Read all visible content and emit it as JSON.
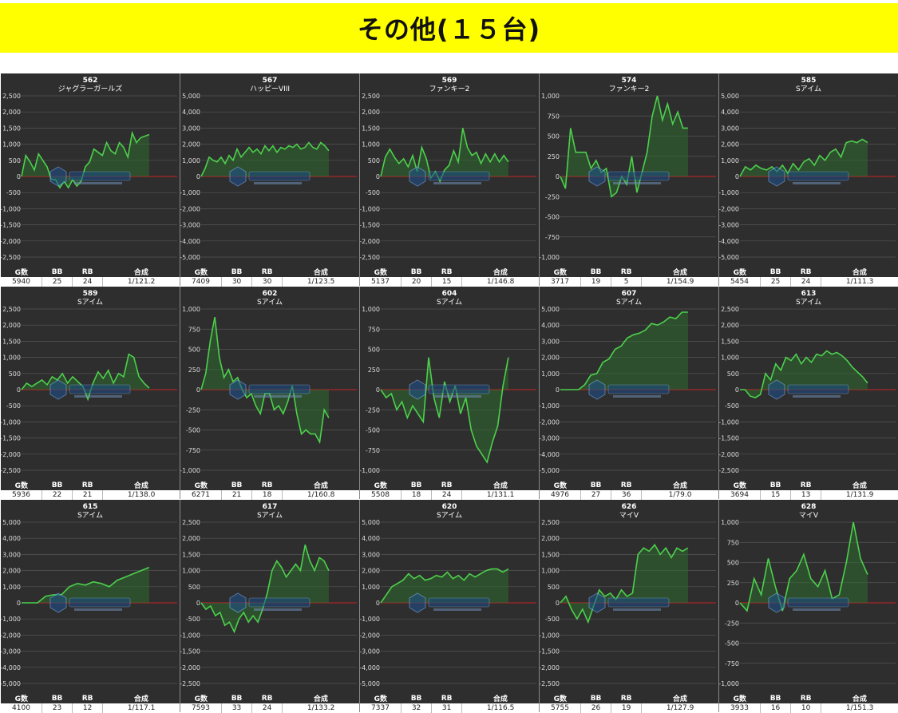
{
  "header": {
    "title": "その他(１５台)"
  },
  "stats_headers": [
    "G数",
    "BB",
    "RB",
    "合成"
  ],
  "colors": {
    "line": "#4cd04c",
    "fill": "#2f6b2f",
    "zero": "#cc2222",
    "grid": "#555555",
    "bg": "#2e2e2e"
  },
  "watermark_icon": "anaslo-logo-icon",
  "chart_data": [
    {
      "type": "line",
      "title": "562",
      "name": "ジャグラーガールズ",
      "ylim": [
        -2500,
        2500
      ],
      "yticks": [
        2500,
        2000,
        1500,
        1000,
        500,
        0,
        -500,
        -1000,
        -1500,
        -2000,
        -2500
      ],
      "ytick_labels": [
        "2,500",
        "2,000",
        "1,500",
        "1,000",
        "500",
        "0",
        "-500",
        "-1,000",
        "-1,500",
        "-2,000",
        "-2,500"
      ],
      "values": [
        0,
        650,
        450,
        200,
        700,
        500,
        300,
        -100,
        -100,
        -350,
        -150,
        -350,
        -100,
        -300,
        -150,
        300,
        450,
        850,
        750,
        650,
        1050,
        800,
        700,
        1050,
        900,
        600,
        1350,
        1050,
        1200,
        1250,
        1300
      ],
      "stats": {
        "g": "5940",
        "bb": "25",
        "rb": "24",
        "total": "1/121.2"
      }
    },
    {
      "type": "line",
      "title": "567",
      "name": "ハッピーVIII",
      "ylim": [
        -5000,
        5000
      ],
      "yticks": [
        5000,
        4000,
        3000,
        2000,
        1000,
        0,
        -1000,
        -2000,
        -3000,
        -4000,
        -5000
      ],
      "ytick_labels": [
        "5,000",
        "4,000",
        "3,000",
        "2,000",
        "1,000",
        "0",
        "-1,000",
        "-2,000",
        "-3,000",
        "-4,000",
        "-5,000"
      ],
      "values": [
        0,
        500,
        1200,
        1000,
        900,
        1200,
        800,
        1300,
        1000,
        1700,
        1200,
        1500,
        1800,
        1500,
        1700,
        1400,
        1900,
        1600,
        1900,
        1500,
        1800,
        1700,
        1900,
        1800,
        2000,
        1700,
        1800,
        2100,
        1800,
        1700,
        2100,
        1900,
        1600
      ],
      "stats": {
        "g": "7409",
        "bb": "30",
        "rb": "30",
        "total": "1/123.5"
      }
    },
    {
      "type": "line",
      "title": "569",
      "name": "ファンキー2",
      "ylim": [
        -2500,
        2500
      ],
      "yticks": [
        2500,
        2000,
        1500,
        1000,
        500,
        0,
        -500,
        -1000,
        -1500,
        -2000,
        -2500
      ],
      "ytick_labels": [
        "2,500",
        "2,000",
        "1,500",
        "1,000",
        "500",
        "0",
        "-500",
        "-1,000",
        "-1,500",
        "-2,000",
        "-2,500"
      ],
      "values": [
        0,
        600,
        850,
        600,
        400,
        550,
        300,
        650,
        150,
        900,
        550,
        -50,
        150,
        -150,
        200,
        350,
        800,
        450,
        1500,
        900,
        650,
        750,
        400,
        700,
        450,
        700,
        450,
        650,
        450
      ],
      "stats": {
        "g": "5137",
        "bb": "20",
        "rb": "15",
        "total": "1/146.8"
      }
    },
    {
      "type": "line",
      "title": "574",
      "name": "ファンキー2",
      "ylim": [
        -1000,
        1000
      ],
      "yticks": [
        1000,
        750,
        500,
        250,
        0,
        -250,
        -500,
        -750,
        -1000
      ],
      "ytick_labels": [
        "1,000",
        "750",
        "500",
        "250",
        "0",
        "-250",
        "-500",
        "-750",
        "-1,000"
      ],
      "values": [
        0,
        -150,
        600,
        300,
        300,
        300,
        100,
        200,
        50,
        100,
        -250,
        -200,
        0,
        -100,
        250,
        -200,
        50,
        300,
        750,
        1000,
        700,
        900,
        650,
        800,
        600,
        600
      ],
      "stats": {
        "g": "3717",
        "bb": "19",
        "rb": "5",
        "total": "1/154.9"
      }
    },
    {
      "type": "line",
      "title": "585",
      "name": "Sアイム",
      "ylim": [
        -5000,
        5000
      ],
      "yticks": [
        5000,
        4000,
        3000,
        2000,
        1000,
        0,
        -1000,
        -2000,
        -3000,
        -4000,
        -5000
      ],
      "ytick_labels": [
        "5,000",
        "4,000",
        "3,000",
        "2,000",
        "1,000",
        "0",
        "-1,000",
        "-2,000",
        "-3,000",
        "-4,000",
        "-5,000"
      ],
      "values": [
        0,
        600,
        400,
        700,
        500,
        400,
        600,
        300,
        700,
        200,
        800,
        400,
        900,
        1100,
        700,
        1300,
        1000,
        1500,
        1700,
        1200,
        2100,
        2200,
        2100,
        2300,
        2100
      ],
      "stats": {
        "g": "5454",
        "bb": "25",
        "rb": "24",
        "total": "1/111.3"
      }
    },
    {
      "type": "line",
      "title": "589",
      "name": "Sアイム",
      "ylim": [
        -2500,
        2500
      ],
      "yticks": [
        2500,
        2000,
        1500,
        1000,
        500,
        0,
        -500,
        -1000,
        -1500,
        -2000,
        -2500
      ],
      "ytick_labels": [
        "2,500",
        "2,000",
        "1,500",
        "1,000",
        "500",
        "0",
        "-500",
        "-1,000",
        "-1,500",
        "-2,000",
        "-2,500"
      ],
      "values": [
        0,
        200,
        100,
        200,
        300,
        150,
        400,
        300,
        500,
        200,
        400,
        250,
        100,
        -300,
        200,
        550,
        350,
        600,
        200,
        500,
        400,
        1100,
        1000,
        400,
        200,
        50
      ],
      "stats": {
        "g": "5936",
        "bb": "22",
        "rb": "21",
        "total": "1/138.0"
      }
    },
    {
      "type": "line",
      "title": "602",
      "name": "Sアイム",
      "ylim": [
        -1000,
        1000
      ],
      "yticks": [
        1000,
        750,
        500,
        250,
        0,
        -250,
        -500,
        -750,
        -1000
      ],
      "ytick_labels": [
        "1,000",
        "750",
        "500",
        "250",
        "0",
        "-250",
        "-500",
        "-750",
        "-1,000"
      ],
      "values": [
        0,
        200,
        600,
        900,
        400,
        150,
        250,
        100,
        150,
        0,
        -100,
        -50,
        -200,
        -300,
        -50,
        -50,
        -250,
        -200,
        -300,
        -150,
        50,
        -300,
        -550,
        -500,
        -550,
        -550,
        -650,
        -250,
        -350
      ],
      "stats": {
        "g": "6271",
        "bb": "21",
        "rb": "18",
        "total": "1/160.8"
      }
    },
    {
      "type": "line",
      "title": "604",
      "name": "Sアイム",
      "ylim": [
        -1000,
        1000
      ],
      "yticks": [
        1000,
        750,
        500,
        250,
        0,
        -250,
        -500,
        -750,
        -1000
      ],
      "ytick_labels": [
        "1,000",
        "750",
        "500",
        "250",
        "0",
        "-250",
        "-500",
        "-750",
        "-1,000"
      ],
      "values": [
        0,
        -100,
        -50,
        -250,
        -150,
        -350,
        -200,
        -300,
        -400,
        400,
        -100,
        -350,
        100,
        -150,
        50,
        -300,
        -100,
        -500,
        -700,
        -800,
        -900,
        -650,
        -450,
        50,
        400
      ],
      "stats": {
        "g": "5508",
        "bb": "18",
        "rb": "24",
        "total": "1/131.1"
      }
    },
    {
      "type": "line",
      "title": "607",
      "name": "Sアイム",
      "ylim": [
        -5000,
        5000
      ],
      "yticks": [
        5000,
        4000,
        3000,
        2000,
        1000,
        0,
        -1000,
        -2000,
        -3000,
        -4000,
        -5000
      ],
      "ytick_labels": [
        "5,000",
        "4,000",
        "3,000",
        "2,000",
        "1,000",
        "0",
        "-1,000",
        "-2,000",
        "-3,000",
        "-4,000",
        "-5,000"
      ],
      "values": [
        0,
        0,
        0,
        0,
        300,
        900,
        1000,
        1700,
        1900,
        2500,
        2700,
        3200,
        3400,
        3500,
        3700,
        4100,
        4000,
        4200,
        4500,
        4400,
        4800,
        4800
      ],
      "stats": {
        "g": "4976",
        "bb": "27",
        "rb": "36",
        "total": "1/79.0"
      }
    },
    {
      "type": "line",
      "title": "613",
      "name": "Sアイム",
      "ylim": [
        -2500,
        2500
      ],
      "yticks": [
        2500,
        2000,
        1500,
        1000,
        500,
        0,
        -500,
        -1000,
        -1500,
        -2000,
        -2500
      ],
      "ytick_labels": [
        "2,500",
        "2,000",
        "1,500",
        "1,000",
        "500",
        "0",
        "-500",
        "-1,000",
        "-1,500",
        "-2,000",
        "-2,500"
      ],
      "values": [
        0,
        0,
        -200,
        -250,
        -150,
        500,
        300,
        800,
        600,
        1000,
        900,
        1100,
        800,
        1000,
        850,
        1100,
        1050,
        1200,
        1100,
        1150,
        1050,
        900,
        700,
        550,
        400,
        200
      ],
      "stats": {
        "g": "3694",
        "bb": "15",
        "rb": "13",
        "total": "1/131.9"
      }
    },
    {
      "type": "line",
      "title": "615",
      "name": "Sアイム",
      "ylim": [
        -5000,
        5000
      ],
      "yticks": [
        5000,
        4000,
        3000,
        2000,
        1000,
        0,
        -1000,
        -2000,
        -3000,
        -4000,
        -5000
      ],
      "ytick_labels": [
        "5,000",
        "4,000",
        "3,000",
        "2,000",
        "1,000",
        "0",
        "-1,000",
        "-2,000",
        "-3,000",
        "-4,000",
        "-5,000"
      ],
      "values": [
        0,
        0,
        0,
        400,
        500,
        500,
        1000,
        1200,
        1100,
        1300,
        1200,
        1000,
        1400,
        1600,
        1800,
        2000,
        2200
      ],
      "stats": {
        "g": "4100",
        "bb": "23",
        "rb": "12",
        "total": "1/117.1"
      }
    },
    {
      "type": "line",
      "title": "617",
      "name": "Sアイム",
      "ylim": [
        -2500,
        2500
      ],
      "yticks": [
        2500,
        2000,
        1500,
        1000,
        500,
        0,
        -500,
        -1000,
        -1500,
        -2000,
        -2500
      ],
      "ytick_labels": [
        "2,500",
        "2,000",
        "1,500",
        "1,000",
        "500",
        "0",
        "-500",
        "-1,000",
        "-1,500",
        "-2,000",
        "-2,500"
      ],
      "values": [
        0,
        -200,
        -100,
        -400,
        -300,
        -700,
        -600,
        -900,
        -500,
        -300,
        -600,
        -400,
        -600,
        -200,
        300,
        1000,
        1300,
        1100,
        800,
        1000,
        1200,
        1000,
        1800,
        1300,
        1000,
        1400,
        1300,
        1000
      ],
      "stats": {
        "g": "7593",
        "bb": "33",
        "rb": "24",
        "total": "1/133.2"
      }
    },
    {
      "type": "line",
      "title": "620",
      "name": "Sアイム",
      "ylim": [
        -5000,
        5000
      ],
      "yticks": [
        5000,
        4000,
        3000,
        2000,
        1000,
        0,
        -1000,
        -2000,
        -3000,
        -4000,
        -5000
      ],
      "ytick_labels": [
        "5,000",
        "4,000",
        "3,000",
        "2,000",
        "1,000",
        "0",
        "-1,000",
        "-2,000",
        "-3,000",
        "-4,000",
        "-5,000"
      ],
      "values": [
        0,
        500,
        1000,
        1200,
        1400,
        1800,
        1500,
        1700,
        1400,
        1500,
        1700,
        1600,
        1900,
        1500,
        1700,
        1400,
        1800,
        1600,
        1800,
        2000,
        2100,
        2100,
        1900,
        2100
      ],
      "stats": {
        "g": "7337",
        "bb": "32",
        "rb": "31",
        "total": "1/116.5"
      }
    },
    {
      "type": "line",
      "title": "626",
      "name": "マイV",
      "ylim": [
        -2500,
        2500
      ],
      "yticks": [
        2500,
        2000,
        1500,
        1000,
        500,
        0,
        -500,
        -1000,
        -1500,
        -2000,
        -2500
      ],
      "ytick_labels": [
        "2,500",
        "2,000",
        "1,500",
        "1,000",
        "500",
        "0",
        "-500",
        "-1,000",
        "-1,500",
        "-2,000",
        "-2,500"
      ],
      "values": [
        0,
        200,
        -200,
        -500,
        -200,
        -600,
        -100,
        400,
        200,
        300,
        100,
        400,
        200,
        300,
        1500,
        1700,
        1600,
        1800,
        1500,
        1700,
        1400,
        1700,
        1600,
        1700
      ],
      "stats": {
        "g": "5755",
        "bb": "26",
        "rb": "19",
        "total": "1/127.9"
      }
    },
    {
      "type": "line",
      "title": "628",
      "name": "マイV",
      "ylim": [
        -1000,
        1000
      ],
      "yticks": [
        1000,
        750,
        500,
        250,
        0,
        -250,
        -500,
        -750,
        -1000
      ],
      "ytick_labels": [
        "1,000",
        "750",
        "500",
        "250",
        "0",
        "-250",
        "-500",
        "-750",
        "-1,000"
      ],
      "values": [
        0,
        -100,
        300,
        100,
        550,
        200,
        -100,
        300,
        400,
        600,
        300,
        200,
        400,
        50,
        100,
        500,
        1000,
        550,
        350
      ],
      "stats": {
        "g": "3933",
        "bb": "16",
        "rb": "10",
        "total": "1/151.3"
      }
    }
  ]
}
